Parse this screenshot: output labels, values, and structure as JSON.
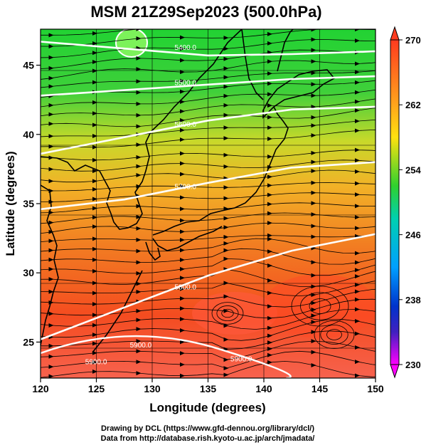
{
  "title": "MSM 21Z29Sep2023 (500.0hPa)",
  "x_axis": {
    "label": "Longitude (degrees)",
    "min": 120,
    "max": 150,
    "ticks": [
      "120",
      "125",
      "130",
      "135",
      "140",
      "145",
      "150"
    ]
  },
  "y_axis": {
    "label": "Latitude  (degrees)",
    "min": 22.4,
    "max": 47.6,
    "ticks": [
      "25",
      "30",
      "35",
      "40",
      "45"
    ]
  },
  "colorbar": {
    "min": 230,
    "max": 270,
    "ticks": [
      "270",
      "262",
      "254",
      "246",
      "238",
      "230"
    ]
  },
  "contours": [
    {
      "value": 5400,
      "label": "5400.0",
      "lats": [
        46.7,
        46.2,
        45.7,
        45.8,
        46.0
      ]
    },
    {
      "value": 5500,
      "label": "5500.0",
      "lats": [
        42.8,
        43.2,
        43.6,
        44.0,
        44.2
      ]
    },
    {
      "value": 5600,
      "label": "5600.0",
      "lats": [
        38.6,
        39.8,
        41.0,
        41.8,
        42.0
      ]
    },
    {
      "value": 5700,
      "label": "5700.0",
      "lats": [
        34.6,
        35.3,
        36.5,
        37.6,
        38.0
      ]
    },
    {
      "value": 5800,
      "label": "5800.0",
      "lats": [
        25.2,
        27.5,
        29.8,
        31.6,
        32.8
      ]
    }
  ],
  "chart_data": {
    "type": "heatmap",
    "title": "MSM 21Z29Sep2023 (500.0hPa)",
    "xlabel": "Longitude (degrees)",
    "ylabel": "Latitude  (degrees)",
    "xlim": [
      120,
      150
    ],
    "ylim": [
      22.4,
      47.6
    ],
    "color_variable_range": [
      230,
      270
    ],
    "grid": true,
    "colors": {
      "low": "#ff00ff",
      "mid": "#00cc33",
      "high": "#ff2a1a"
    },
    "contour_labels": [
      "5400.0",
      "5500.0",
      "5600.0",
      "5700.0",
      "5800.0",
      "5900.0",
      "5900.0",
      "5900.0"
    ]
  },
  "credits": {
    "line1": "Drawing by DCL (https://www.gfd-dennou.org/library/dcl/)",
    "line2": "Data from http://database.rish.kyoto-u.ac.jp/arch/jmadata/"
  }
}
